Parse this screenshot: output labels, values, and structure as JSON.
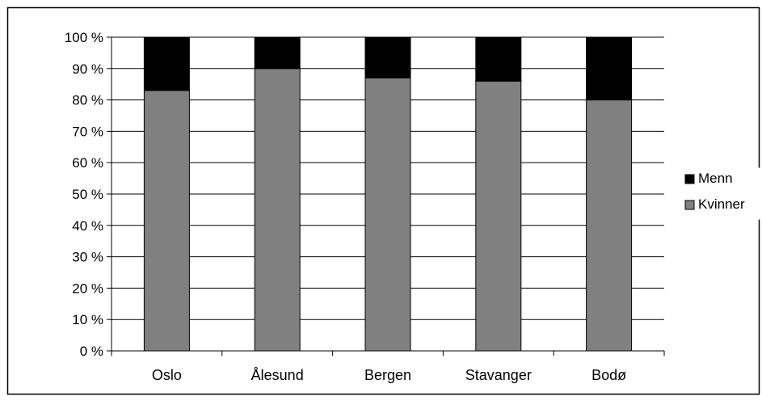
{
  "chart_data": {
    "type": "bar",
    "stacked": true,
    "percent_stacked": true,
    "categories": [
      "Oslo",
      "Ålesund",
      "Bergen",
      "Stavanger",
      "Bodø"
    ],
    "series": [
      {
        "name": "Kvinner",
        "values": [
          83,
          90,
          87,
          86,
          80
        ],
        "color": "#808080"
      },
      {
        "name": "Menn",
        "values": [
          17,
          10,
          13,
          14,
          20
        ],
        "color": "#000000"
      }
    ],
    "y_ticks": [
      "0 %",
      "10 %",
      "20 %",
      "30 %",
      "40 %",
      "50 %",
      "60 %",
      "70 %",
      "80 %",
      "90 %",
      "100 %"
    ],
    "ylim": [
      0,
      100
    ],
    "grid": true,
    "legend": {
      "position": "right",
      "entries": [
        "Menn",
        "Kvinner"
      ]
    },
    "title": "",
    "xlabel": "",
    "ylabel": ""
  }
}
